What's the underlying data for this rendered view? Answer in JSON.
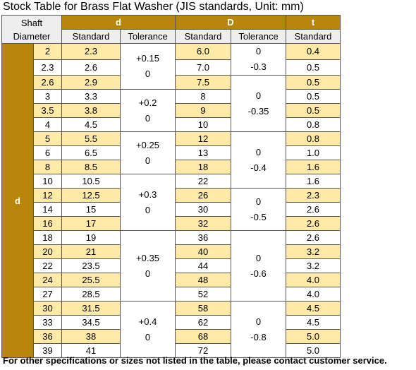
{
  "title": "Stock Table for Brass Flat Washer  (JIS standards, Unit: mm)",
  "header": {
    "shaft": "Shaft",
    "diameter": "Diameter",
    "d": "d",
    "D": "D",
    "t": "t",
    "side": "d",
    "cols": [
      "Standard",
      "Tolerance",
      "Standard",
      "Tolerance",
      "Standard"
    ]
  },
  "rows": [
    [
      "2",
      "2.3",
      "6.0",
      "0.4"
    ],
    [
      "2.3",
      "2.6",
      "7.0",
      "0.5"
    ],
    [
      "2.6",
      "2.9",
      "7.5",
      "0.5"
    ],
    [
      "3",
      "3.3",
      "8",
      "0.5"
    ],
    [
      "3.5",
      "3.8",
      "9",
      "0.5"
    ],
    [
      "4",
      "4.5",
      "10",
      "0.8"
    ],
    [
      "5",
      "5.5",
      "12",
      "0.8"
    ],
    [
      "6",
      "6.5",
      "13",
      "1.0"
    ],
    [
      "8",
      "8.5",
      "18",
      "1.6"
    ],
    [
      "10",
      "10.5",
      "22",
      "1.6"
    ],
    [
      "12",
      "12.5",
      "26",
      "2.3"
    ],
    [
      "14",
      "15",
      "30",
      "2.6"
    ],
    [
      "16",
      "17",
      "32",
      "2.6"
    ],
    [
      "18",
      "19",
      "36",
      "2.6"
    ],
    [
      "20",
      "21",
      "40",
      "3.2"
    ],
    [
      "22",
      "23.5",
      "44",
      "3.2"
    ],
    [
      "24",
      "25.5",
      "48",
      "4.0"
    ],
    [
      "27",
      "28.5",
      "52",
      "4.0"
    ],
    [
      "30",
      "31.5",
      "58",
      "4.5"
    ],
    [
      "33",
      "34.5",
      "62",
      "4.5"
    ],
    [
      "36",
      "38",
      "68",
      "5.0"
    ],
    [
      "39",
      "41",
      "72",
      "5.0"
    ]
  ],
  "d_tolerance": [
    [
      "+0.15",
      "0"
    ],
    [
      "+0.2",
      "0"
    ],
    [
      "+0.25",
      "0"
    ],
    [
      "+0.3",
      "0"
    ],
    [
      "+0.35",
      "0"
    ],
    [
      "+0.4",
      "0"
    ]
  ],
  "D_tolerance": [
    [
      "0",
      "-0.3"
    ],
    [
      "0",
      "-0.35"
    ],
    [
      "0",
      "-0.4"
    ],
    [
      "0",
      "-0.5"
    ],
    [
      "0",
      "-0.6"
    ],
    [
      "0",
      "-0.8"
    ]
  ],
  "footer": "For other specifications or sizes not listed in the table, please contact customer service."
}
